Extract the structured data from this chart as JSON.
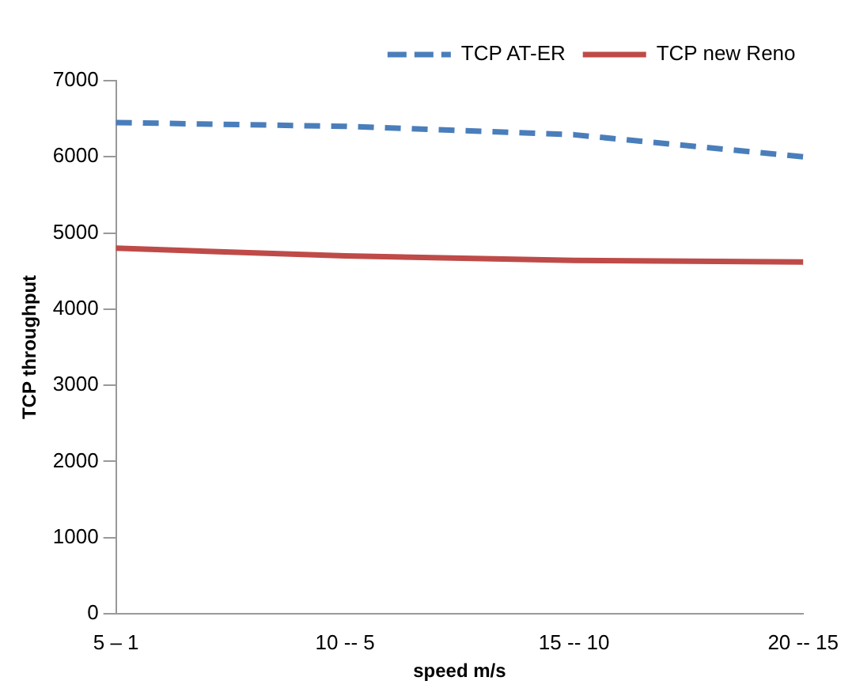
{
  "chart_data": {
    "type": "line",
    "xlabel": "speed m/s",
    "ylabel": "TCP throughput",
    "categories": [
      "5 – 1",
      "10 -- 5",
      "15 -- 10",
      "20 -- 15"
    ],
    "series": [
      {
        "name": "TCP AT-ER",
        "color": "#4a7ebb",
        "values": [
          6450,
          6400,
          6290,
          6000
        ],
        "line_style": "dashed"
      },
      {
        "name": "TCP new Reno",
        "color": "#be4b48",
        "values": [
          4800,
          4700,
          4640,
          4620
        ],
        "line_style": "solid"
      }
    ],
    "ylim": [
      0,
      7000
    ],
    "yticks": [
      0,
      1000,
      2000,
      3000,
      4000,
      5000,
      6000,
      7000
    ],
    "grid": false,
    "legend": "top right",
    "marker": "none"
  }
}
